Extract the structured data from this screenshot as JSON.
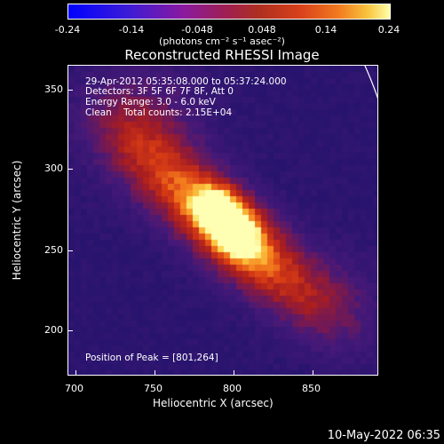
{
  "colorbar": {
    "ticks": [
      "-0.24",
      "-0.14",
      "-0.048",
      "0.048",
      "0.14",
      "0.24"
    ],
    "unit_label": "(photons cm⁻² s⁻¹ asec⁻²)",
    "colors": [
      "#0000ff",
      "#8b1a9e",
      "#b0301f",
      "#f27a1e",
      "#ffffa8"
    ]
  },
  "title": "Reconstructed RHESSI Image",
  "info": {
    "line1": "29-Apr-2012 05:35:08.000 to 05:37:24.000",
    "line2": "Detectors: 3F 5F 6F 7F 8F, Att 0",
    "line3": "Energy Range: 3.0 - 6.0 keV",
    "line4": "Clean    Total counts: 2.15E+04",
    "peak": "Position of Peak = [801,264]"
  },
  "axes": {
    "x_ticks": [
      "700",
      "750",
      "800",
      "850"
    ],
    "y_ticks": [
      "350",
      "300",
      "250",
      "200"
    ],
    "x_label": "Heliocentric X (arcsec)",
    "y_label": "Heliocentric Y (arcsec)"
  },
  "timestamp": "10-May-2022 06:35"
}
